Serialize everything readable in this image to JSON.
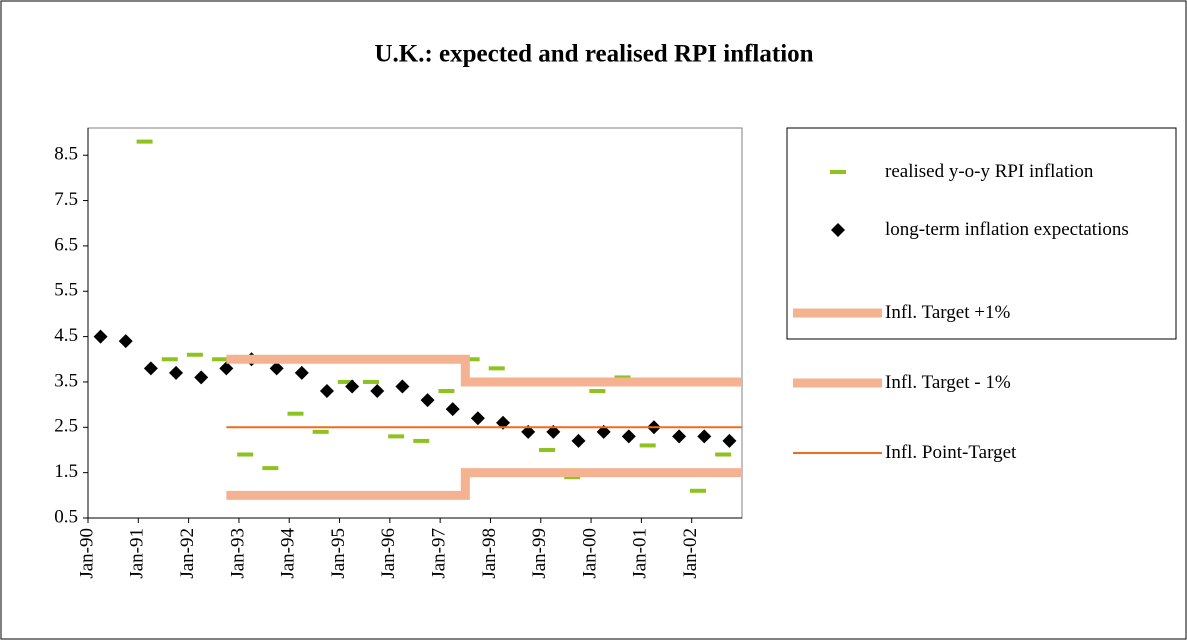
{
  "chart_data": {
    "type": "scatter",
    "title": "U.K.: expected and realised RPI inflation",
    "xlim": [
      1990,
      2003
    ],
    "xticks": [
      {
        "value": 1990,
        "label": "Jan-90"
      },
      {
        "value": 1991,
        "label": "Jan-91"
      },
      {
        "value": 1992,
        "label": "Jan-92"
      },
      {
        "value": 1993,
        "label": "Jan-93"
      },
      {
        "value": 1994,
        "label": "Jan-94"
      },
      {
        "value": 1995,
        "label": "Jan-95"
      },
      {
        "value": 1996,
        "label": "Jan-96"
      },
      {
        "value": 1997,
        "label": "Jan-97"
      },
      {
        "value": 1998,
        "label": "Jan-98"
      },
      {
        "value": 1999,
        "label": "Jan-99"
      },
      {
        "value": 2000,
        "label": "Jan-00"
      },
      {
        "value": 2001,
        "label": "Jan-01"
      },
      {
        "value": 2002,
        "label": "Jan-02"
      }
    ],
    "ylim": [
      0.5,
      9.1
    ],
    "yticks": [
      0.5,
      1.5,
      2.5,
      3.5,
      4.5,
      5.5,
      6.5,
      7.5,
      8.5
    ],
    "grid": false,
    "legend": "right",
    "series": [
      {
        "name": "realised y-o-y RPI inflation",
        "color": "#8dc21f",
        "marker": "dash",
        "x": [
          1991.125,
          1991.625,
          1992.125,
          1992.625,
          1993.125,
          1993.625,
          1994.125,
          1994.625,
          1995.125,
          1995.625,
          1996.125,
          1996.625,
          1997.125,
          1997.625,
          1998.125,
          1998.625,
          1999.125,
          1999.625,
          2000.125,
          2000.625,
          2001.125,
          2001.625,
          2002.125,
          2002.625
        ],
        "values": [
          8.8,
          4.0,
          4.1,
          4.0,
          1.9,
          1.6,
          2.8,
          2.4,
          3.5,
          3.5,
          2.3,
          2.2,
          3.3,
          4.0,
          3.8,
          3.5,
          2.0,
          1.4,
          3.3,
          3.6,
          2.1,
          1.5,
          1.1,
          1.9
        ]
      },
      {
        "name": "long-term inflation expectations",
        "color": "#000000",
        "marker": "diamond",
        "x": [
          1990.25,
          1990.75,
          1991.25,
          1991.75,
          1992.25,
          1992.75,
          1993.25,
          1993.75,
          1994.25,
          1994.75,
          1995.25,
          1995.75,
          1996.25,
          1996.75,
          1997.25,
          1997.75,
          1998.25,
          1998.75,
          1999.25,
          1999.75,
          2000.25,
          2000.75,
          2001.25,
          2001.75,
          2002.25,
          2002.75
        ],
        "values": [
          4.5,
          4.4,
          3.8,
          3.7,
          3.6,
          3.8,
          4.0,
          3.8,
          3.7,
          3.3,
          3.4,
          3.3,
          3.4,
          3.1,
          2.9,
          2.7,
          2.6,
          2.4,
          2.4,
          2.2,
          2.4,
          2.3,
          2.5,
          2.3,
          2.3,
          2.2
        ]
      },
      {
        "name": "Infl. Target +1%",
        "color": "#f5b290",
        "marker": "thick-line",
        "x": [
          1992.75,
          1997.5,
          1997.5,
          2003
        ],
        "values": [
          4.0,
          4.0,
          3.5,
          3.5
        ]
      },
      {
        "name": "Infl. Target - 1%",
        "color": "#f5b290",
        "marker": "thick-line",
        "x": [
          1992.75,
          1997.5,
          1997.5,
          2003
        ],
        "values": [
          1.0,
          1.0,
          1.5,
          1.5
        ]
      },
      {
        "name": "Infl. Point-Target",
        "color": "#f26b1d",
        "marker": "line",
        "x": [
          1992.75,
          2003
        ],
        "values": [
          2.5,
          2.5
        ]
      }
    ]
  }
}
